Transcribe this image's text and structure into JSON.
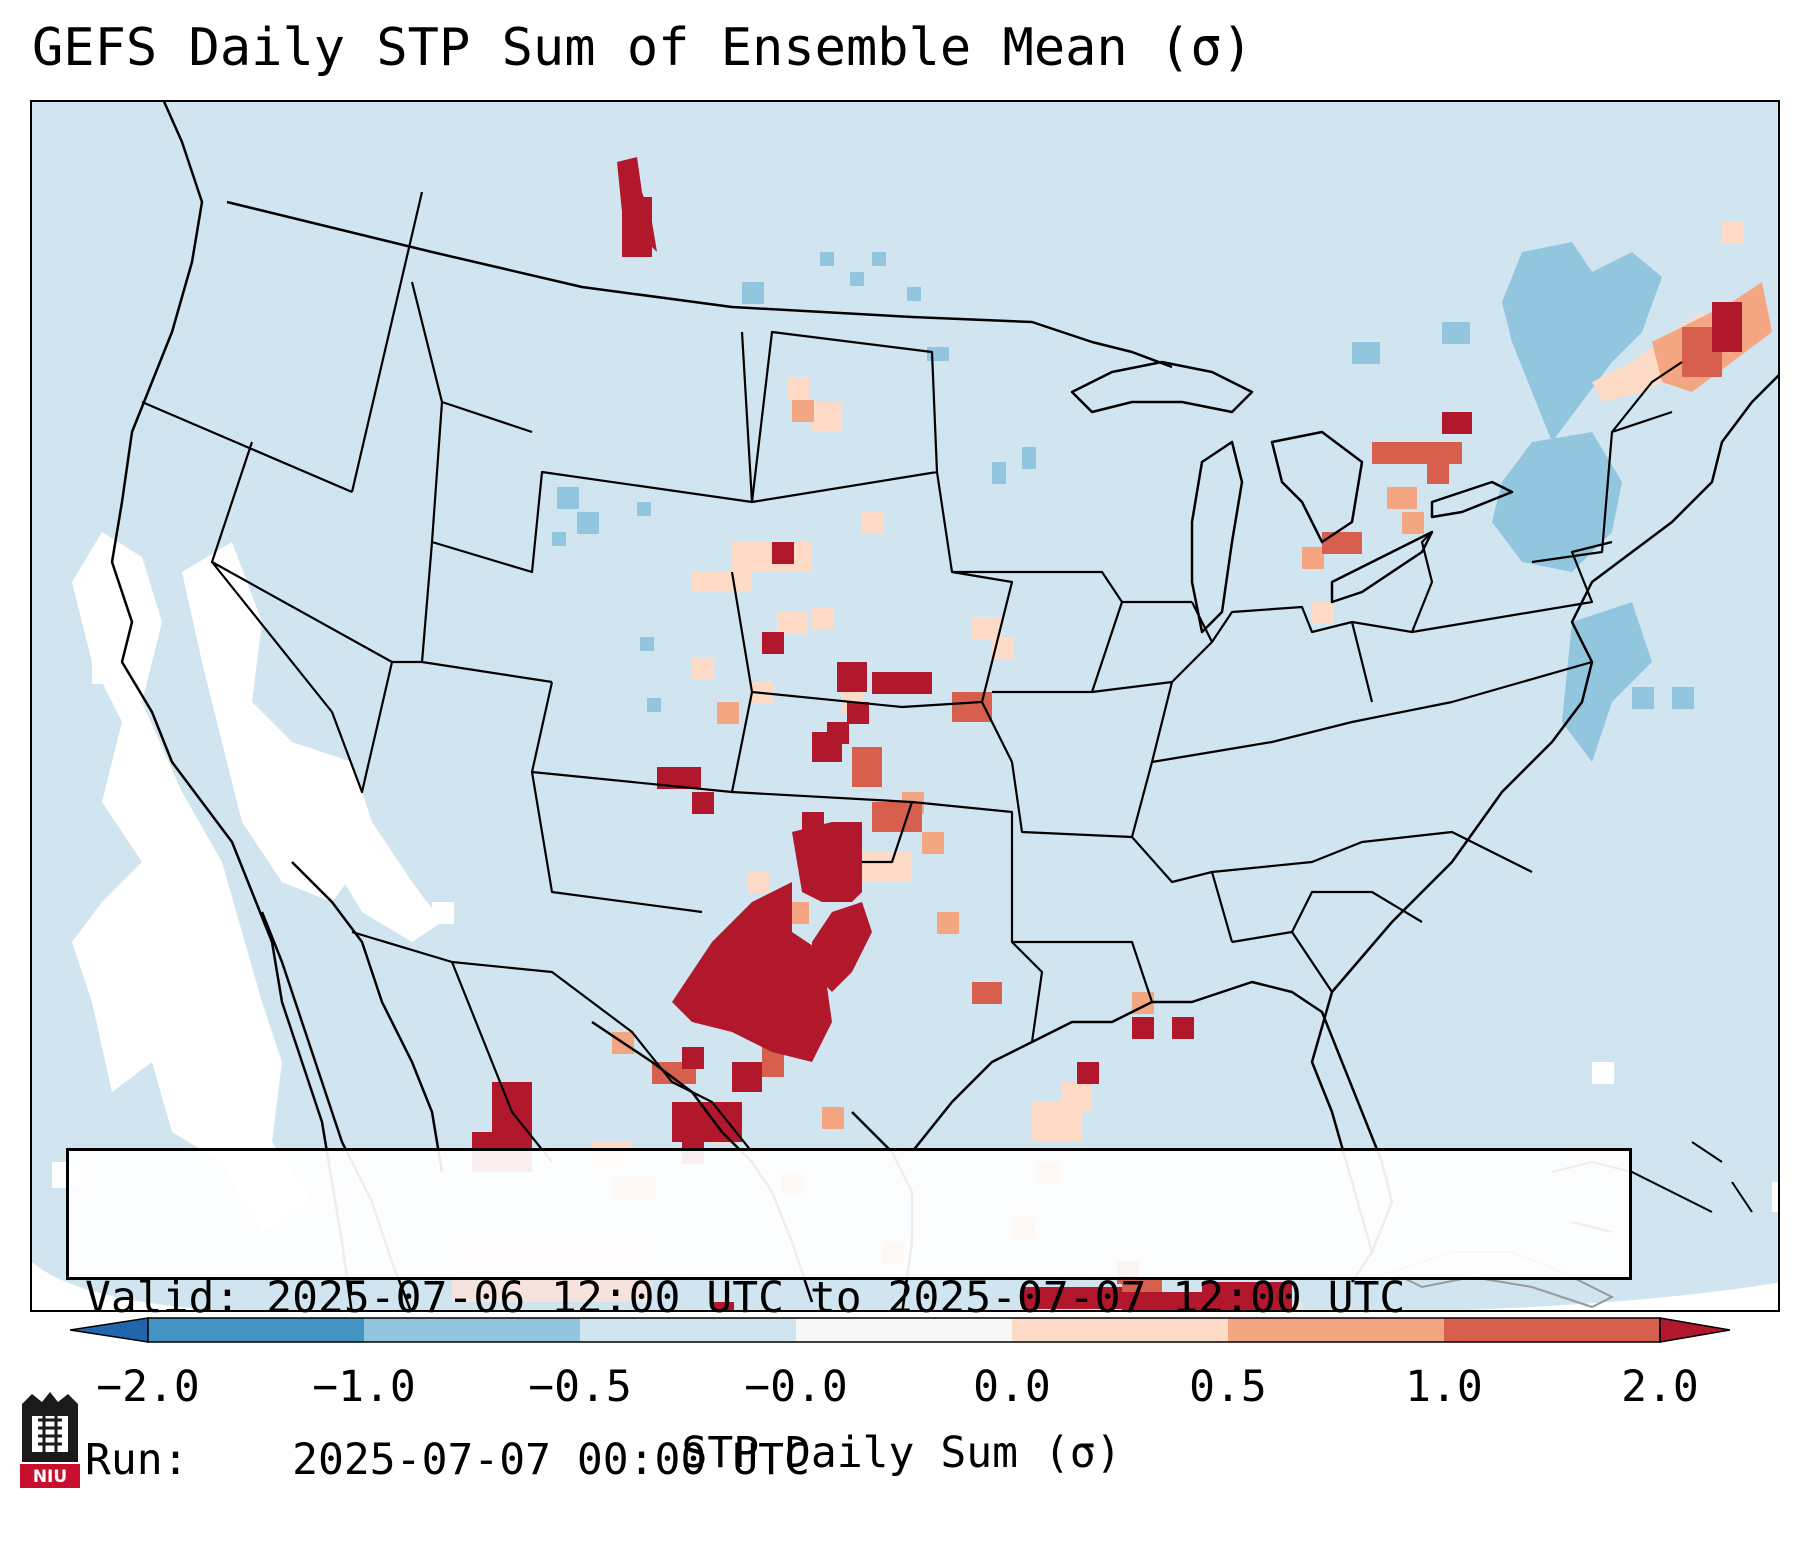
{
  "title": "GEFS Daily STP Sum of Ensemble Mean (σ)",
  "info": {
    "valid_label": "Valid:",
    "valid_value": "2025-07-06 12:00 UTC to 2025-07-07 12:00 UTC",
    "run_label": "Run:",
    "run_value": "2025-07-07 00:00 UTC"
  },
  "colorbar": {
    "label": "STP Daily Sum (σ)",
    "ticks": [
      "−2.0",
      "−1.0",
      "−0.5",
      "−0.0",
      "0.0",
      "0.5",
      "1.0",
      "2.0"
    ],
    "colors": [
      "#4393c3",
      "#92c5de",
      "#d1e5f0",
      "#f7f7f7",
      "#fddbc7",
      "#f4a582",
      "#d6604d",
      "#b2182b"
    ],
    "under_color": "#2166ac",
    "over_color": "#b2182b"
  },
  "logo": {
    "text": "NIU"
  }
}
